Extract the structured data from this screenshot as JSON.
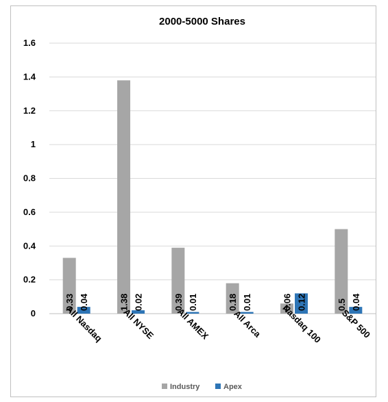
{
  "chart_data": {
    "type": "bar",
    "title": "2000-5000 Shares",
    "categories": [
      "All Nasdaq",
      "All NYSE",
      "All AMEX",
      "All Arca",
      "Nasdaq 100",
      "S&P 500"
    ],
    "series": [
      {
        "name": "Industry",
        "color": "#a6a6a6",
        "values": [
          0.33,
          1.38,
          0.39,
          0.18,
          0.06,
          0.5
        ],
        "labels": [
          "0.33",
          "1.38",
          "0.39",
          "0.18",
          "0.06",
          "0.5"
        ]
      },
      {
        "name": "Apex",
        "color": "#2e75b6",
        "values": [
          0.04,
          0.02,
          0.01,
          0.01,
          0.12,
          0.04
        ],
        "labels": [
          "0.04",
          "0.02",
          "0.01",
          "0.01",
          "0.12",
          "0.04"
        ]
      }
    ],
    "ylim": [
      0,
      1.6
    ],
    "yticks": [
      0,
      0.2,
      0.4,
      0.6,
      0.8,
      1,
      1.2,
      1.4,
      1.6
    ],
    "ytick_labels": [
      "0",
      "0.2",
      "0.4",
      "0.6",
      "0.8",
      "1",
      "1.2",
      "1.4",
      "1.6"
    ],
    "grid": true,
    "legend_position": "bottom"
  }
}
